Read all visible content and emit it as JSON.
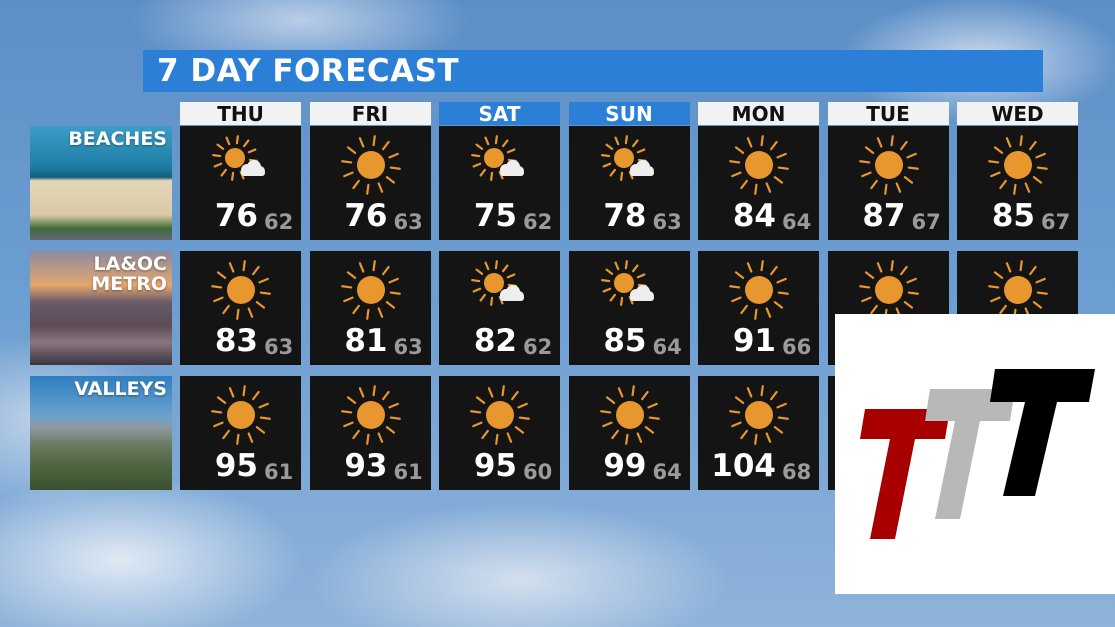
{
  "title": "7 DAY FORECAST",
  "days": [
    {
      "label": "THU",
      "weekend": false
    },
    {
      "label": "FRI",
      "weekend": false
    },
    {
      "label": "SAT",
      "weekend": true
    },
    {
      "label": "SUN",
      "weekend": true
    },
    {
      "label": "MON",
      "weekend": false
    },
    {
      "label": "TUE",
      "weekend": false
    },
    {
      "label": "WED",
      "weekend": false
    }
  ],
  "colors": {
    "title_bar": "#2b7fd6",
    "weekend_header": "#2b7fd6",
    "sun": "#e8962e",
    "cell": "#141414"
  },
  "regions": [
    {
      "label": "BEACHES",
      "forecast": [
        {
          "icon": "sun-cloud-icon",
          "hi": "76",
          "lo": "62"
        },
        {
          "icon": "sun-icon",
          "hi": "76",
          "lo": "63"
        },
        {
          "icon": "sun-cloud-icon",
          "hi": "75",
          "lo": "62"
        },
        {
          "icon": "sun-cloud-icon",
          "hi": "78",
          "lo": "63"
        },
        {
          "icon": "sun-icon",
          "hi": "84",
          "lo": "64"
        },
        {
          "icon": "sun-icon",
          "hi": "87",
          "lo": "67"
        },
        {
          "icon": "sun-icon",
          "hi": "85",
          "lo": "67"
        }
      ]
    },
    {
      "label": "LA&OC METRO",
      "forecast": [
        {
          "icon": "sun-icon",
          "hi": "83",
          "lo": "63"
        },
        {
          "icon": "sun-icon",
          "hi": "81",
          "lo": "63"
        },
        {
          "icon": "sun-cloud-icon",
          "hi": "82",
          "lo": "62"
        },
        {
          "icon": "sun-cloud-icon",
          "hi": "85",
          "lo": "64"
        },
        {
          "icon": "sun-icon",
          "hi": "91",
          "lo": "66"
        },
        {
          "icon": "sun-icon"
        },
        {
          "icon": "sun-icon"
        }
      ]
    },
    {
      "label": "VALLEYS",
      "forecast": [
        {
          "icon": "sun-icon",
          "hi": "95",
          "lo": "61"
        },
        {
          "icon": "sun-icon",
          "hi": "93",
          "lo": "61"
        },
        {
          "icon": "sun-icon",
          "hi": "95",
          "lo": "60"
        },
        {
          "icon": "sun-icon",
          "hi": "99",
          "lo": "64"
        },
        {
          "icon": "sun-icon",
          "hi": "104",
          "lo": "68"
        },
        {
          "icon": "sun-icon"
        },
        {
          "icon": "sun-icon"
        }
      ]
    }
  ],
  "logo": {
    "name": "TTT logo",
    "colors": [
      "#a80000",
      "#b8b8b8",
      "#000000"
    ]
  }
}
